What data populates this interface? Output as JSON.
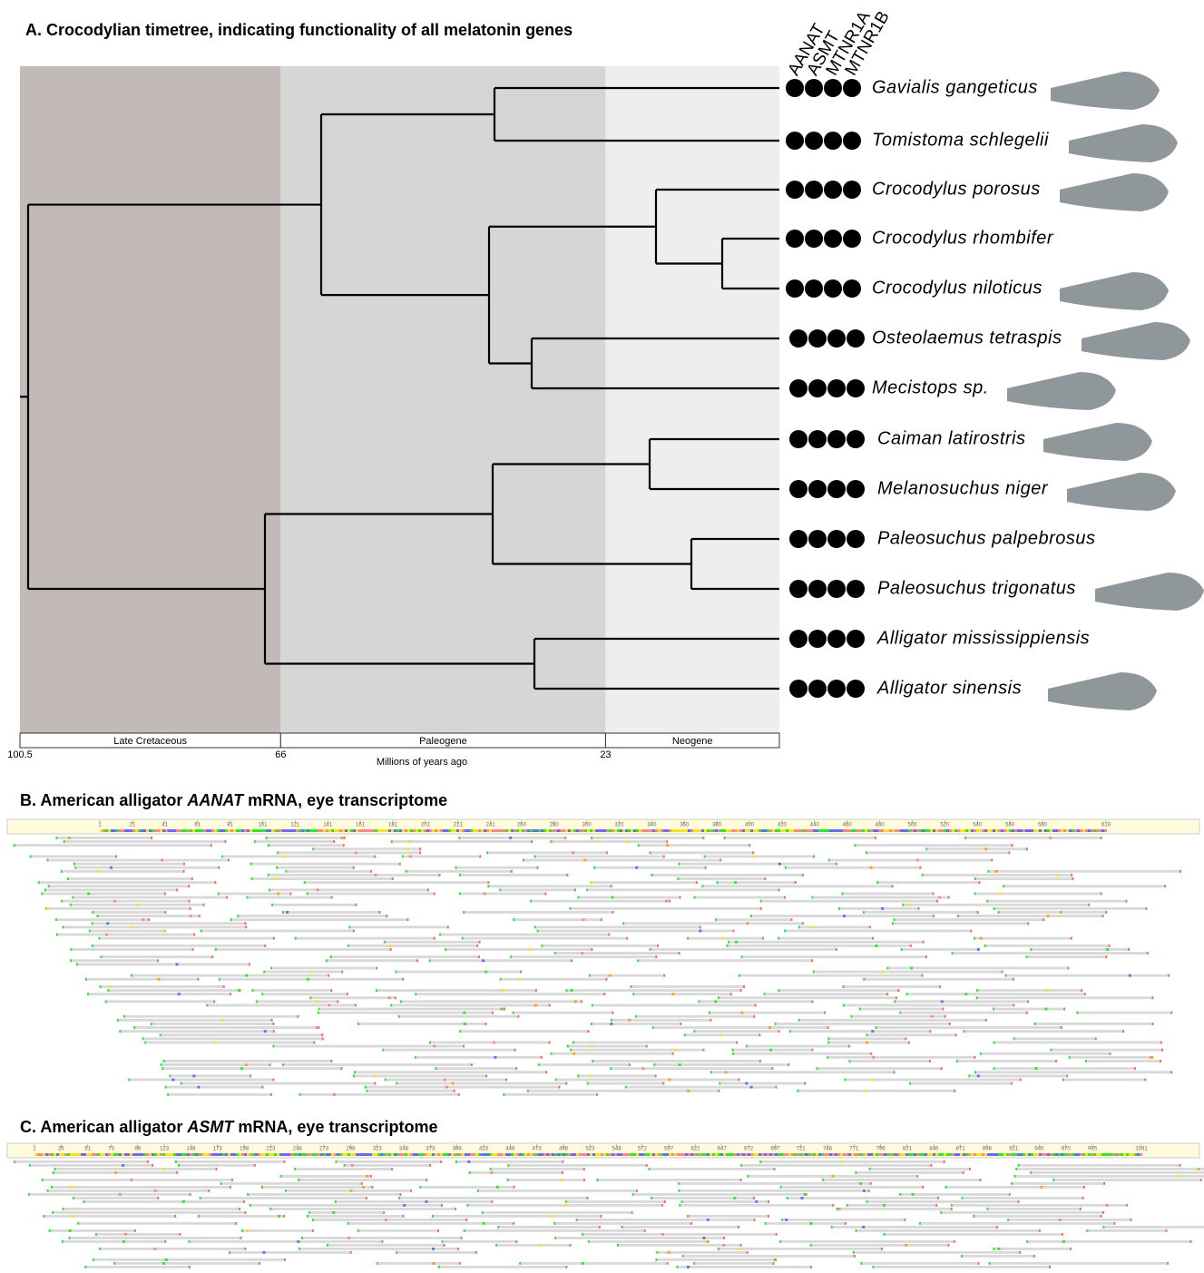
{
  "panel_a": {
    "title": "A. Crocodylian timetree, indicating functionality of all melatonin genes",
    "genes": [
      "AANAT",
      "ASMT",
      "MTNR1A",
      "MTNR1B"
    ],
    "species": [
      "Gavialis gangeticus",
      "Tomistoma schlegelii",
      "Crocodylus porosus",
      "Crocodylus rhombifer",
      "Crocodylus niloticus",
      "Osteolaemus tetraspis",
      "Mecistops sp.",
      "Caiman latirostris",
      "Melanosuchus niger",
      "Paleosuchus palpebrosus",
      "Paleosuchus trigonatus",
      "Alligator mississippiensis",
      "Alligator sinensis"
    ],
    "periods": [
      "Late Cretaceous",
      "Paleogene",
      "Neogene"
    ],
    "time_ticks": [
      100.5,
      66,
      23
    ],
    "axis_label": "Millions of years ago"
  },
  "panel_b": {
    "title_start": "B. American alligator",
    "gene": "AANAT",
    "title_end": "mRNA, eye transcriptome",
    "ruler_ticks": [
      1,
      21,
      41,
      61,
      81,
      101,
      121,
      141,
      161,
      181,
      201,
      221,
      241,
      260,
      280,
      300,
      320,
      340,
      360,
      380,
      400,
      420,
      440,
      460,
      480,
      500,
      520,
      540,
      560,
      580,
      619
    ]
  },
  "panel_c": {
    "title_start": "C. American alligator",
    "gene": "ASMT",
    "title_end": "mRNA, eye transcriptome",
    "ruler_ticks": [
      1,
      26,
      51,
      73,
      98,
      123,
      148,
      173,
      198,
      223,
      248,
      273,
      298,
      323,
      348,
      373,
      398,
      423,
      448,
      473,
      498,
      523,
      548,
      572,
      597,
      622,
      647,
      672,
      697,
      721,
      746,
      771,
      796,
      821,
      846,
      871,
      896,
      921,
      945,
      970,
      995,
      1041
    ]
  }
}
